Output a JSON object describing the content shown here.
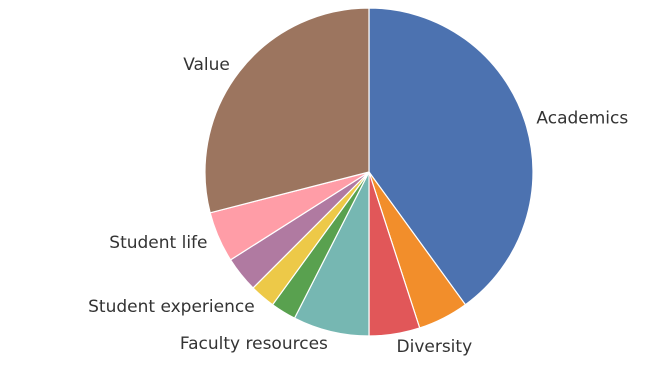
{
  "chart_data": {
    "type": "pie",
    "title": "",
    "start_angle_deg": 90,
    "direction": "clockwise",
    "legend": "none",
    "slices": [
      {
        "label": "Academics",
        "value": 40,
        "color": "#4c72b0"
      },
      {
        "label": "",
        "value": 5,
        "color": "#f28e2b"
      },
      {
        "label": "Diversity",
        "value": 5,
        "color": "#e15759"
      },
      {
        "label": "Faculty resources",
        "value": 7.5,
        "color": "#76b7b2"
      },
      {
        "label": "",
        "value": 2.5,
        "color": "#59a14f"
      },
      {
        "label": "Student experience",
        "value": 2.5,
        "color": "#edc948"
      },
      {
        "label": "",
        "value": 3.5,
        "color": "#b07aa1"
      },
      {
        "label": "Student life",
        "value": 5,
        "color": "#ff9da7"
      },
      {
        "label": "Value",
        "value": 29,
        "color": "#9c755f"
      }
    ]
  }
}
